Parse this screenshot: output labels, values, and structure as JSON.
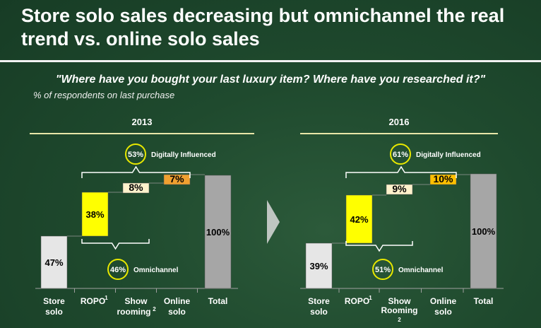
{
  "title": "Store solo sales decreasing but omnichannel  the real trend vs. online solo sales",
  "quote": "\"Where have you bought your last luxury item? Where have you researched it?\"",
  "subtitle": "% of respondents on last purchase",
  "colors": {
    "store": "#e6e6e6",
    "ropo": "#ffff00",
    "show": "#fff2cc",
    "online": "#f5b82a",
    "total": "#a6a6a6",
    "circle": "#e8e800",
    "accent_line": "#e8e6a8"
  },
  "chart_data": [
    {
      "type": "bar",
      "subtype": "waterfall",
      "title": "2013",
      "categories": [
        "Store solo",
        "ROPO1",
        "Show rooming2",
        "Online solo",
        "Total"
      ],
      "category_labels": [
        [
          "Store",
          "solo"
        ],
        [
          "ROPO",
          "1"
        ],
        [
          "Show",
          "rooming",
          "2"
        ],
        [
          "Online",
          "solo"
        ],
        [
          "Total"
        ]
      ],
      "values": [
        47,
        38,
        8,
        7,
        100
      ],
      "labels": [
        "47%",
        "38%",
        "8%",
        "7%",
        "100%"
      ],
      "ylim": [
        0,
        100
      ],
      "digitally_influenced": {
        "value": "53%",
        "label": "Digitally Influenced"
      },
      "omnichannel": {
        "value": "46%",
        "label": "Omnichannel"
      }
    },
    {
      "type": "bar",
      "subtype": "waterfall",
      "title": "2016",
      "categories": [
        "Store solo",
        "ROPO1",
        "Show Rooming2",
        "Online solo",
        "Total"
      ],
      "category_labels": [
        [
          "Store",
          "solo"
        ],
        [
          "ROPO",
          "1"
        ],
        [
          "Show",
          "Rooming",
          "2"
        ],
        [
          "Online",
          "solo"
        ],
        [
          "Total"
        ]
      ],
      "values": [
        39,
        42,
        9,
        10,
        100
      ],
      "labels": [
        "39%",
        "42%",
        "9%",
        "10%",
        "100%"
      ],
      "ylim": [
        0,
        100
      ],
      "digitally_influenced": {
        "value": "61%",
        "label": "Digitally Influenced"
      },
      "omnichannel": {
        "value": "51%",
        "label": "Omnichannel"
      }
    }
  ]
}
